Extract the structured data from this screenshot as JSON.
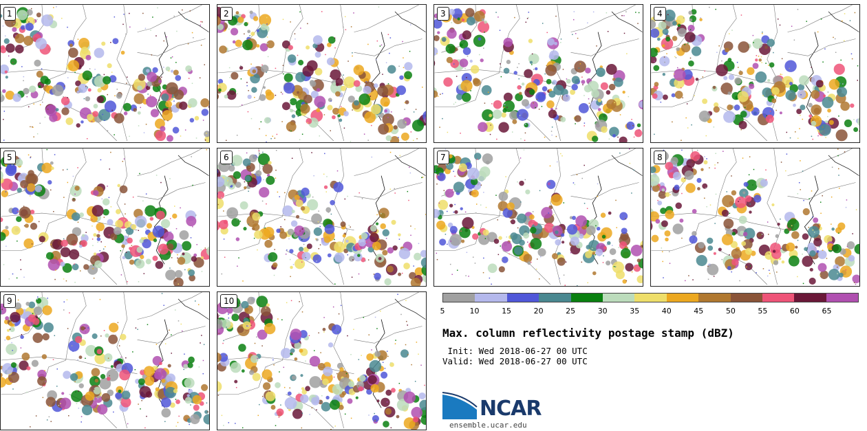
{
  "panels": [
    {
      "label": "1"
    },
    {
      "label": "2"
    },
    {
      "label": "3"
    },
    {
      "label": "4"
    },
    {
      "label": "5"
    },
    {
      "label": "6"
    },
    {
      "label": "7"
    },
    {
      "label": "8"
    },
    {
      "label": "9"
    },
    {
      "label": "10"
    }
  ],
  "colorbar": {
    "ticks": [
      "5",
      "10",
      "15",
      "20",
      "25",
      "30",
      "35",
      "40",
      "45",
      "50",
      "55",
      "60",
      "65"
    ],
    "colors": [
      "#a0a0a0",
      "#b4b8ec",
      "#5057d8",
      "#4a8890",
      "#0a8010",
      "#bcdcbc",
      "#eede6a",
      "#eca820",
      "#b07830",
      "#8a5438",
      "#ee5478",
      "#6a1838",
      "#b050b0"
    ]
  },
  "title": "Max. column reflectivity postage stamp (dBZ)",
  "init": " Init: Wed 2018-06-27 00 UTC",
  "valid": "Valid: Wed 2018-06-27 00 UTC",
  "logo": {
    "name": "NCAR",
    "url": "ensemble.ucar.edu"
  }
}
